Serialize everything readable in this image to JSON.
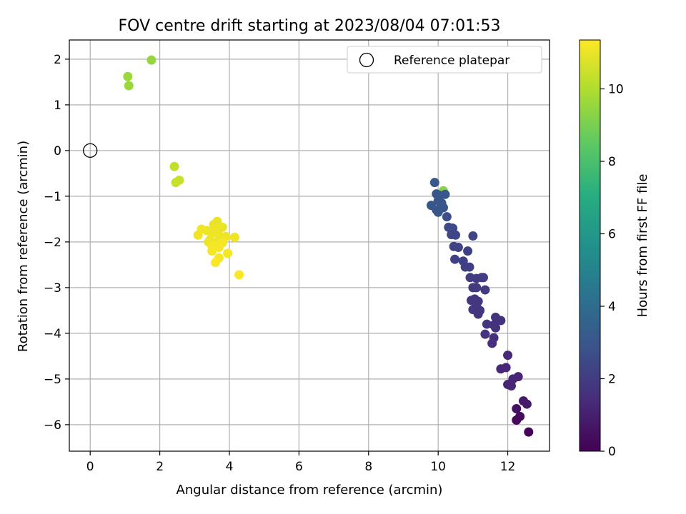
{
  "chart_data": {
    "type": "scatter",
    "title": "FOV centre drift starting at 2023/08/04 07:01:53",
    "xlabel": "Angular distance from reference (arcmin)",
    "ylabel": "Rotation from reference (arcmin)",
    "xlim": [
      -0.6,
      13.2
    ],
    "ylim": [
      -6.58,
      2.42
    ],
    "xticks": [
      0,
      2,
      4,
      6,
      8,
      10,
      12
    ],
    "yticks": [
      -6,
      -5,
      -4,
      -3,
      -2,
      -1,
      0,
      1,
      2
    ],
    "grid": true,
    "legend": {
      "placement": "top-right",
      "entries": [
        {
          "label": "Reference platepar",
          "marker": "open-circle"
        }
      ]
    },
    "reference_point": {
      "x": 0,
      "y": 0
    },
    "colorbar": {
      "label": "Hours from first FF file",
      "range": [
        0,
        11.35
      ],
      "ticks": [
        0,
        2,
        4,
        6,
        8,
        10
      ],
      "colormap": "viridis"
    },
    "points": [
      [
        1.76,
        1.98,
        9.5
      ],
      [
        1.08,
        1.62,
        9.6
      ],
      [
        1.11,
        1.42,
        9.6
      ],
      [
        2.42,
        -0.35,
        10.3
      ],
      [
        2.56,
        -0.65,
        10.4
      ],
      [
        2.46,
        -0.7,
        10.4
      ],
      [
        10.15,
        -0.88,
        9.2
      ],
      [
        9.9,
        -0.7,
        3.1
      ],
      [
        9.95,
        -0.95,
        3.0
      ],
      [
        10.05,
        -0.98,
        3.0
      ],
      [
        10.2,
        -0.96,
        3.0
      ],
      [
        10.0,
        -1.1,
        3.0
      ],
      [
        10.1,
        -1.15,
        3.0
      ],
      [
        9.8,
        -1.2,
        3.0
      ],
      [
        10.15,
        -1.25,
        3.0
      ],
      [
        9.95,
        -1.3,
        3.0
      ],
      [
        10.05,
        -1.28,
        3.0
      ],
      [
        10.0,
        -1.35,
        3.0
      ],
      [
        10.1,
        -1.2,
        3.0
      ],
      [
        10.25,
        -1.45,
        2.7
      ],
      [
        10.3,
        -1.68,
        2.5
      ],
      [
        10.42,
        -1.7,
        2.5
      ],
      [
        10.38,
        -1.84,
        2.4
      ],
      [
        10.5,
        -1.85,
        2.4
      ],
      [
        11.0,
        -1.87,
        2.3
      ],
      [
        10.45,
        -2.1,
        2.3
      ],
      [
        10.58,
        -2.12,
        2.3
      ],
      [
        10.85,
        -2.2,
        2.2
      ],
      [
        10.48,
        -2.38,
        2.2
      ],
      [
        10.72,
        -2.42,
        2.2
      ],
      [
        10.78,
        -2.55,
        2.1
      ],
      [
        10.9,
        -2.55,
        2.1
      ],
      [
        10.92,
        -2.78,
        2.0
      ],
      [
        11.1,
        -2.8,
        2.0
      ],
      [
        11.25,
        -2.78,
        2.0
      ],
      [
        11.3,
        -2.78,
        2.0
      ],
      [
        11.0,
        -3.0,
        1.9
      ],
      [
        11.1,
        -3.0,
        1.9
      ],
      [
        11.35,
        -3.05,
        1.9
      ],
      [
        10.95,
        -3.28,
        1.8
      ],
      [
        11.05,
        -3.25,
        1.8
      ],
      [
        11.15,
        -3.3,
        1.8
      ],
      [
        11.1,
        -3.4,
        1.8
      ],
      [
        11.0,
        -3.48,
        1.8
      ],
      [
        11.2,
        -3.5,
        1.8
      ],
      [
        11.15,
        -3.58,
        1.7
      ],
      [
        11.4,
        -3.8,
        1.7
      ],
      [
        11.35,
        -4.02,
        1.7
      ],
      [
        11.6,
        -3.82,
        1.6
      ],
      [
        11.65,
        -3.65,
        1.6
      ],
      [
        11.8,
        -3.72,
        1.6
      ],
      [
        11.65,
        -3.88,
        1.6
      ],
      [
        11.6,
        -4.1,
        1.5
      ],
      [
        11.55,
        -4.22,
        1.5
      ],
      [
        12.0,
        -4.48,
        1.3
      ],
      [
        11.8,
        -4.78,
        1.3
      ],
      [
        11.95,
        -4.75,
        1.3
      ],
      [
        12.3,
        -4.95,
        1.2
      ],
      [
        12.15,
        -5.0,
        1.2
      ],
      [
        12.0,
        -5.12,
        1.2
      ],
      [
        12.1,
        -5.15,
        1.2
      ],
      [
        12.45,
        -5.48,
        0.8
      ],
      [
        12.55,
        -5.55,
        0.8
      ],
      [
        12.25,
        -5.65,
        0.5
      ],
      [
        12.35,
        -5.82,
        0.4
      ],
      [
        12.25,
        -5.9,
        0.3
      ],
      [
        12.6,
        -6.16,
        0.1
      ],
      [
        3.65,
        -1.55,
        11.0
      ],
      [
        3.55,
        -1.62,
        11.0
      ],
      [
        3.8,
        -1.68,
        11.0
      ],
      [
        3.2,
        -1.72,
        11.1
      ],
      [
        3.35,
        -1.75,
        11.1
      ],
      [
        3.6,
        -1.75,
        11.1
      ],
      [
        3.5,
        -1.8,
        11.1
      ],
      [
        3.7,
        -1.85,
        11.1
      ],
      [
        3.1,
        -1.85,
        11.1
      ],
      [
        3.9,
        -1.88,
        11.1
      ],
      [
        4.15,
        -1.9,
        11.1
      ],
      [
        3.75,
        -1.9,
        11.1
      ],
      [
        3.45,
        -1.95,
        11.1
      ],
      [
        3.4,
        -2.0,
        11.1
      ],
      [
        3.65,
        -2.0,
        11.1
      ],
      [
        3.8,
        -2.02,
        11.2
      ],
      [
        3.5,
        -2.1,
        11.2
      ],
      [
        3.6,
        -2.1,
        11.2
      ],
      [
        3.7,
        -2.12,
        11.2
      ],
      [
        3.5,
        -2.2,
        11.2
      ],
      [
        3.95,
        -2.25,
        11.2
      ],
      [
        3.7,
        -2.35,
        11.2
      ],
      [
        3.6,
        -2.45,
        11.3
      ],
      [
        4.28,
        -2.72,
        11.3
      ]
    ]
  }
}
